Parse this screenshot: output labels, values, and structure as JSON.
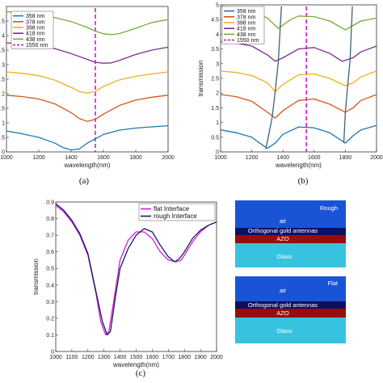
{
  "chart_data": [
    {
      "panel": "(a)",
      "type": "line",
      "xlabel": "wavelength(nm)",
      "ylabel": "",
      "xlim": [
        1000,
        2000
      ],
      "ylim": [
        0,
        5
      ],
      "xticks": [
        1000,
        1200,
        1400,
        1600,
        1800,
        2000
      ],
      "yticks": [
        0,
        0.5,
        1,
        1.5,
        2,
        2.5,
        3,
        3.5,
        4,
        4.5
      ],
      "legend_position": "top-left",
      "marker_line": {
        "label": "1550 nm",
        "x": 1550,
        "color": "#d516d5",
        "style": "dashed"
      },
      "series": [
        {
          "name": "358 nm",
          "color": "#1f77b4",
          "x": [
            1000,
            1100,
            1200,
            1300,
            1350,
            1400,
            1450,
            1500,
            1600,
            1700,
            1800,
            1900,
            2000
          ],
          "y": [
            0.72,
            0.62,
            0.5,
            0.3,
            0.15,
            0.07,
            0.1,
            0.3,
            0.6,
            0.75,
            0.82,
            0.86,
            0.9
          ]
        },
        {
          "name": "378 nm",
          "color": "#d95319",
          "x": [
            1000,
            1100,
            1200,
            1300,
            1400,
            1450,
            1500,
            1550,
            1600,
            1700,
            1800,
            1900,
            2000
          ],
          "y": [
            1.95,
            1.9,
            1.82,
            1.65,
            1.35,
            1.15,
            1.05,
            1.12,
            1.3,
            1.6,
            1.78,
            1.88,
            1.95
          ]
        },
        {
          "name": "398 nm",
          "color": "#edb120",
          "x": [
            1000,
            1100,
            1200,
            1300,
            1400,
            1450,
            1500,
            1550,
            1600,
            1700,
            1800,
            1900,
            2000
          ],
          "y": [
            2.75,
            2.7,
            2.62,
            2.47,
            2.22,
            2.08,
            2.02,
            2.08,
            2.25,
            2.48,
            2.6,
            2.68,
            2.75
          ]
        },
        {
          "name": "418 nm",
          "color": "#7e2f8e",
          "x": [
            1000,
            1100,
            1200,
            1300,
            1400,
            1500,
            1550,
            1600,
            1650,
            1700,
            1800,
            1900,
            2000
          ],
          "y": [
            3.75,
            3.72,
            3.65,
            3.55,
            3.38,
            3.18,
            3.08,
            3.05,
            3.06,
            3.15,
            3.35,
            3.5,
            3.6
          ]
        },
        {
          "name": "438 nm",
          "color": "#77ac30",
          "x": [
            1000,
            1100,
            1200,
            1300,
            1400,
            1500,
            1550,
            1600,
            1650,
            1700,
            1800,
            1900,
            2000
          ],
          "y": [
            4.82,
            4.78,
            4.72,
            4.62,
            4.48,
            4.28,
            4.15,
            4.06,
            4.03,
            4.07,
            4.25,
            4.45,
            4.55
          ]
        }
      ]
    },
    {
      "panel": "(b)",
      "type": "line",
      "xlabel": "wavelength(nm)",
      "ylabel": "transmission",
      "xlim": [
        1000,
        2000
      ],
      "ylim": [
        0,
        5
      ],
      "xticks": [
        1000,
        1200,
        1400,
        1600,
        1800,
        2000
      ],
      "yticks": [
        0,
        0.5,
        1,
        1.5,
        2,
        2.5,
        3,
        3.5,
        4,
        4.5,
        5
      ],
      "legend_position": "top-left",
      "marker_line": {
        "label": "1550 nm",
        "x": 1550,
        "color": "#d516d5",
        "style": "dashed"
      },
      "series": [
        {
          "name": "358 nm",
          "color": "#1f77b4",
          "x": [
            1000,
            1100,
            1200,
            1250,
            1300,
            1350,
            1400,
            1500,
            1600,
            1700,
            1800,
            1850,
            1900,
            2000
          ],
          "y": [
            0.75,
            0.65,
            0.5,
            0.3,
            0.12,
            0.3,
            0.6,
            0.85,
            0.82,
            0.65,
            0.3,
            0.55,
            0.75,
            0.9
          ]
        },
        {
          "name": "378 nm",
          "color": "#d95319",
          "x": [
            1000,
            1100,
            1200,
            1300,
            1350,
            1400,
            1500,
            1600,
            1700,
            1800,
            1850,
            1900,
            2000
          ],
          "y": [
            1.95,
            1.88,
            1.72,
            1.35,
            1.15,
            1.4,
            1.75,
            1.8,
            1.62,
            1.35,
            1.5,
            1.75,
            1.95
          ]
        },
        {
          "name": "398 nm",
          "color": "#edb120",
          "x": [
            1000,
            1100,
            1200,
            1300,
            1350,
            1400,
            1500,
            1600,
            1700,
            1800,
            1850,
            1900,
            2000
          ],
          "y": [
            2.75,
            2.7,
            2.6,
            2.35,
            2.05,
            2.3,
            2.62,
            2.65,
            2.5,
            2.25,
            2.35,
            2.55,
            2.75
          ]
        },
        {
          "name": "418 nm",
          "color": "#7e2f8e",
          "x": [
            1000,
            1100,
            1200,
            1300,
            1350,
            1400,
            1500,
            1600,
            1700,
            1780,
            1850,
            1900,
            2000
          ],
          "y": [
            3.75,
            3.7,
            3.6,
            3.3,
            3.08,
            3.2,
            3.5,
            3.55,
            3.35,
            3.08,
            3.2,
            3.4,
            3.6
          ]
        },
        {
          "name": "438 nm",
          "color": "#77ac30",
          "x": [
            1000,
            1100,
            1200,
            1300,
            1370,
            1450,
            1500,
            1600,
            1700,
            1800,
            1850,
            1900,
            2000
          ],
          "y": [
            4.95,
            4.9,
            4.8,
            4.55,
            4.2,
            4.5,
            4.62,
            4.6,
            4.45,
            4.15,
            4.3,
            4.45,
            4.55
          ]
        },
        {
          "name": "",
          "color": "#40607a",
          "x": [
            1290,
            1330,
            1350,
            1370,
            1390
          ],
          "y": [
            0.1,
            1.15,
            2.05,
            3.05,
            4.95
          ]
        },
        {
          "name": "",
          "color": "#40607a",
          "x": [
            1790,
            1800,
            1815,
            1830,
            1845
          ],
          "y": [
            0.3,
            1.35,
            2.25,
            3.1,
            4.95
          ]
        }
      ]
    },
    {
      "panel": "(c)",
      "type": "line",
      "xlabel": "wavelength(nm)",
      "ylabel": "transmission",
      "xlim": [
        1000,
        2000
      ],
      "ylim": [
        0,
        0.9
      ],
      "xticks": [
        1000,
        1100,
        1200,
        1300,
        1400,
        1500,
        1600,
        1700,
        1800,
        1900,
        2000
      ],
      "yticks": [
        0,
        0.1,
        0.2,
        0.3,
        0.4,
        0.5,
        0.6,
        0.7,
        0.8,
        0.9
      ],
      "legend_position": "top-right",
      "series": [
        {
          "name": "flat Interface",
          "color": "#d21dd2",
          "x": [
            1000,
            1050,
            1100,
            1150,
            1200,
            1250,
            1280,
            1310,
            1330,
            1360,
            1400,
            1450,
            1500,
            1550,
            1600,
            1650,
            1700,
            1750,
            1780,
            1800,
            1850,
            1900,
            1950,
            2000
          ],
          "y": [
            0.88,
            0.84,
            0.78,
            0.7,
            0.58,
            0.35,
            0.18,
            0.1,
            0.12,
            0.3,
            0.55,
            0.67,
            0.72,
            0.72,
            0.68,
            0.6,
            0.55,
            0.54,
            0.55,
            0.58,
            0.66,
            0.72,
            0.76,
            0.78
          ]
        },
        {
          "name": "rough Interface",
          "color": "#1a1a5e",
          "x": [
            1000,
            1050,
            1100,
            1150,
            1200,
            1250,
            1290,
            1320,
            1340,
            1370,
            1400,
            1450,
            1500,
            1550,
            1600,
            1650,
            1700,
            1740,
            1770,
            1800,
            1850,
            1900,
            1950,
            2000
          ],
          "y": [
            0.89,
            0.85,
            0.79,
            0.71,
            0.59,
            0.36,
            0.18,
            0.1,
            0.12,
            0.32,
            0.5,
            0.62,
            0.7,
            0.74,
            0.72,
            0.64,
            0.57,
            0.54,
            0.56,
            0.6,
            0.68,
            0.73,
            0.76,
            0.78
          ]
        }
      ]
    }
  ],
  "panel_labels": [
    "(a)",
    "(b)",
    "(c)"
  ],
  "schematics": [
    {
      "title": "Rough",
      "layers": [
        "air",
        "Orthogonal gold antennas",
        "AZO",
        "Glass"
      ]
    },
    {
      "title": "Flat",
      "layers": [
        "air",
        "Orthogonal gold antennas",
        "AZO",
        "Glass"
      ]
    }
  ]
}
